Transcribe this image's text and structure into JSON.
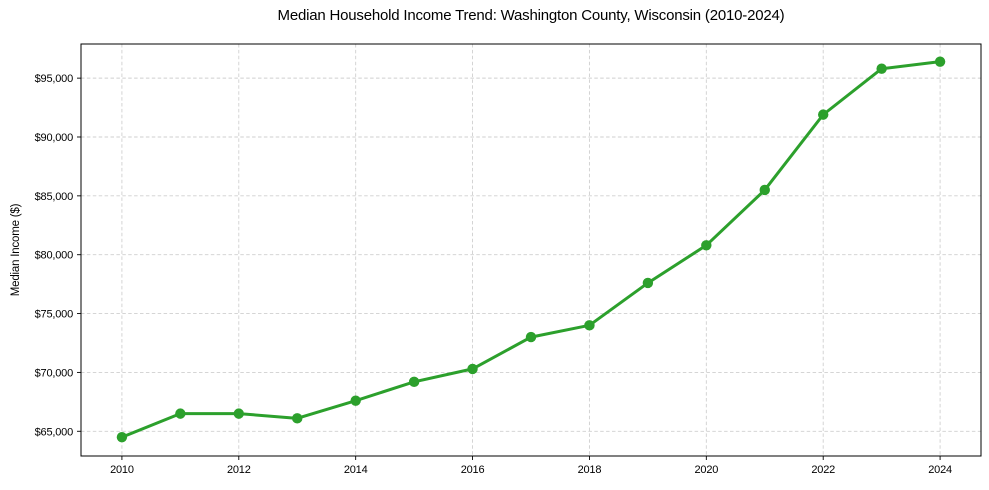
{
  "chart_data": {
    "type": "line",
    "title": "Median Household Income Trend: Washington County, Wisconsin (2010-2024)",
    "xlabel": "",
    "ylabel": "Median Income ($)",
    "series": [
      {
        "name": "Median household income",
        "x": [
          2010,
          2011,
          2012,
          2013,
          2014,
          2015,
          2016,
          2017,
          2018,
          2019,
          2020,
          2021,
          2022,
          2023,
          2024
        ],
        "values": [
          64500,
          66500,
          66500,
          66100,
          67600,
          69200,
          70300,
          73000,
          74000,
          77600,
          80800,
          85500,
          91900,
          95800,
          96400
        ]
      }
    ],
    "xlim": [
      2009.3,
      2024.7
    ],
    "ylim": [
      62900,
      97900
    ],
    "xticks": {
      "values": [
        2010,
        2012,
        2014,
        2016,
        2018,
        2020,
        2022,
        2024
      ],
      "labels": [
        "2010",
        "2012",
        "2014",
        "2016",
        "2018",
        "2020",
        "2022",
        "2024"
      ]
    },
    "yticks": {
      "values": [
        65000,
        70000,
        75000,
        80000,
        85000,
        90000,
        95000
      ],
      "labels": [
        "$65,000",
        "$70,000",
        "$75,000",
        "$80,000",
        "$85,000",
        "$90,000",
        "$95,000"
      ]
    },
    "grid": true,
    "legend_position": "none",
    "line_color": "#2ca02c",
    "marker": "circle",
    "grid_color": "#cfcfcf",
    "frame_color": "#000000",
    "background_color": "#ffffff"
  }
}
